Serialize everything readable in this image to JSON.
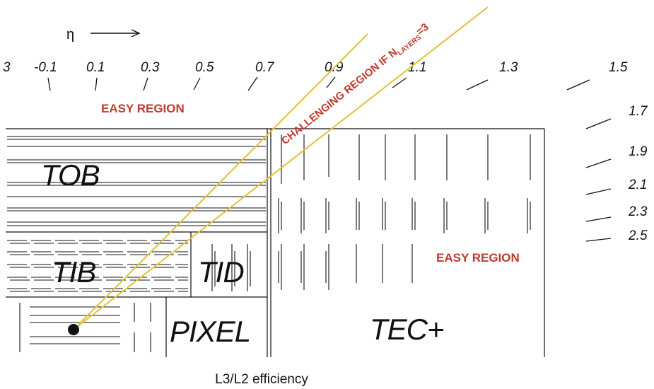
{
  "eta_axis": {
    "symbol": "η",
    "labels": [
      "3",
      "-0.1",
      "0.1",
      "0.3",
      "0.5",
      "0.7",
      "0.9",
      "1.1",
      "1.3",
      "1.5",
      "1.7",
      "1.9",
      "2.1",
      "2.3",
      "2.5"
    ]
  },
  "regions": {
    "easy_top": "EASY REGION",
    "easy_tec": "EASY REGION",
    "challenging_main": "CHALLENGING REGION IF N",
    "challenging_sub": "LAYERS",
    "challenging_tail": "=3"
  },
  "detectors": {
    "tob": "TOB",
    "tib": "TIB",
    "tid": "TID",
    "pixel": "PIXEL",
    "tec": "TEC+"
  },
  "caption": "L3/L2 efficiency",
  "colors": {
    "challenging_lines": "#e2c13a",
    "region_text": "#c0392b",
    "detector_lines": "#111111"
  }
}
